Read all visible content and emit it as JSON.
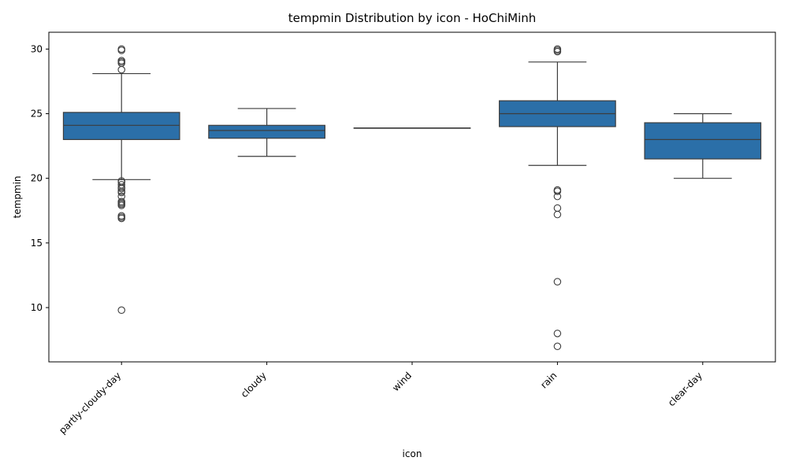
{
  "chart_data": {
    "type": "box",
    "title": "tempmin Distribution by icon - HoChiMinh",
    "xlabel": "icon",
    "ylabel": "tempmin",
    "ylim": [
      5.8,
      31.3
    ],
    "yticks": [
      10,
      15,
      20,
      25,
      30
    ],
    "grid": false,
    "legend": "none",
    "box_color": "#2b6fa8",
    "line_color": "#3d3d3d",
    "categories": [
      "partly-cloudy-day",
      "cloudy",
      "wind",
      "rain",
      "clear-day"
    ],
    "boxes": [
      {
        "category": "partly-cloudy-day",
        "whisker_low": 19.9,
        "q1": 23.0,
        "median": 24.1,
        "q3": 25.1,
        "whisker_high": 28.1,
        "outliers": [
          30.0,
          29.9,
          29.1,
          29.0,
          28.9,
          28.4,
          19.8,
          19.7,
          19.5,
          19.3,
          19.2,
          19.0,
          18.9,
          18.6,
          18.2,
          18.1,
          18.0,
          17.9,
          17.1,
          17.0,
          16.9,
          9.8
        ]
      },
      {
        "category": "cloudy",
        "whisker_low": 21.7,
        "q1": 23.1,
        "median": 23.7,
        "q3": 24.1,
        "whisker_high": 25.4,
        "outliers": []
      },
      {
        "category": "wind",
        "whisker_low": 23.9,
        "q1": 23.9,
        "median": 23.9,
        "q3": 23.9,
        "whisker_high": 23.9,
        "outliers": []
      },
      {
        "category": "rain",
        "whisker_low": 21.0,
        "q1": 24.0,
        "median": 25.0,
        "q3": 26.0,
        "whisker_high": 29.0,
        "outliers": [
          30.0,
          29.9,
          29.8,
          19.1,
          19.0,
          18.6,
          17.7,
          17.2,
          12.0,
          8.0,
          7.0
        ]
      },
      {
        "category": "clear-day",
        "whisker_low": 20.0,
        "q1": 21.5,
        "median": 23.0,
        "q3": 24.3,
        "whisker_high": 25.0,
        "outliers": []
      }
    ]
  }
}
